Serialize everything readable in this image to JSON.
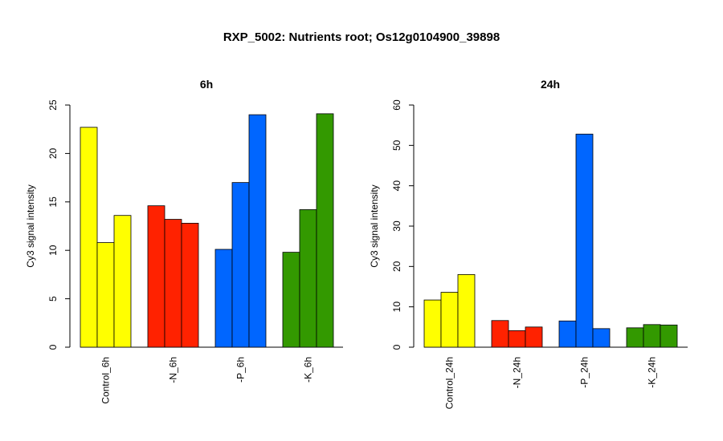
{
  "title": "RXP_5002: Nutrients root; Os12g0104900_39898",
  "chart_data": [
    {
      "type": "bar",
      "title": "6h",
      "ylabel": "Cy3 signal intensity",
      "ylim": [
        0,
        25
      ],
      "yticks": [
        0,
        5,
        10,
        15,
        20,
        25
      ],
      "categories": [
        "Control_6h",
        "-N_6h",
        "-P_6h",
        "-K_6h"
      ],
      "colors": [
        "#FFFF00",
        "#FF2200",
        "#0066FF",
        "#339900"
      ],
      "groups": [
        [
          22.7,
          10.8,
          13.6
        ],
        [
          14.6,
          13.2,
          12.8
        ],
        [
          10.1,
          17.0,
          24.0
        ],
        [
          9.8,
          14.2,
          24.1
        ]
      ]
    },
    {
      "type": "bar",
      "title": "24h",
      "ylabel": "Cy3 signal intensity",
      "ylim": [
        0,
        60
      ],
      "yticks": [
        0,
        10,
        20,
        30,
        40,
        50,
        60
      ],
      "categories": [
        "Control_24h",
        "-N_24h",
        "-P_24h",
        "-K_24h"
      ],
      "colors": [
        "#FFFF00",
        "#FF2200",
        "#0066FF",
        "#339900"
      ],
      "groups": [
        [
          11.7,
          13.6,
          18.0
        ],
        [
          6.6,
          4.1,
          5.0
        ],
        [
          6.5,
          52.8,
          4.6
        ],
        [
          4.8,
          5.6,
          5.5
        ]
      ]
    }
  ]
}
